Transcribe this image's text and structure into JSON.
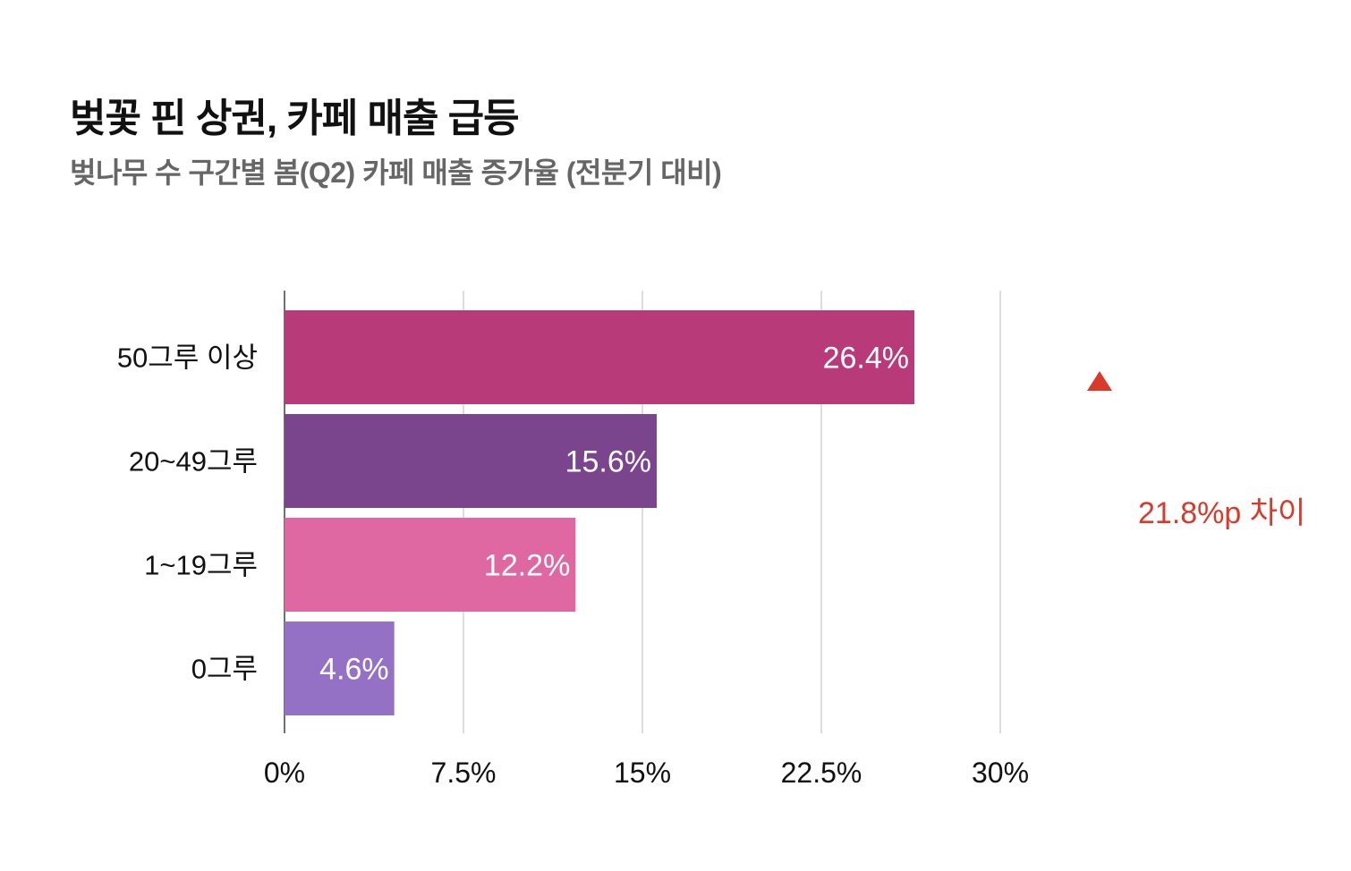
{
  "chart_data": {
    "type": "bar",
    "orientation": "horizontal",
    "title": "벚꽃 핀 상권, 카페 매출 급등",
    "subtitle": "벚나무 수 구간별 봄(Q2) 카페 매출 증가율 (전분기 대비)",
    "xlabel": "",
    "ylabel": "",
    "categories": [
      "50그루 이상",
      "20~49그루",
      "1~19그루",
      "0그루"
    ],
    "values": [
      26.4,
      15.6,
      12.2,
      4.6
    ],
    "data_labels": [
      "26.4%",
      "15.6%",
      "12.2%",
      "4.6%"
    ],
    "colors": [
      "#b83a78",
      "#7a458c",
      "#df68a3",
      "#9571c6"
    ],
    "xlim": [
      0,
      35
    ],
    "x_ticks": [
      0,
      7.5,
      15,
      22.5,
      30
    ],
    "x_tick_labels": [
      "0%",
      "7.5%",
      "15%",
      "22.5%",
      "30%"
    ],
    "grid": true,
    "legend": "none",
    "annotation": {
      "text": "21.8%p 차이",
      "from_value": 4.6,
      "to_value": 26.4,
      "color": "#d93a2a"
    }
  }
}
